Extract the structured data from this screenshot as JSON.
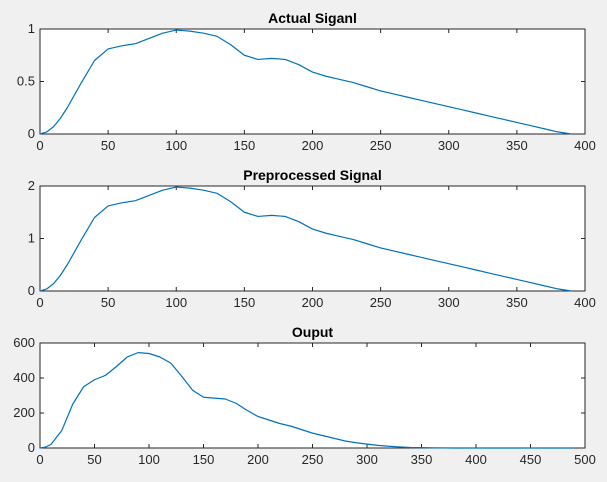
{
  "colors": {
    "line": "#0072bd",
    "figure_bg": "#f0f0f0",
    "axes_bg": "#ffffff",
    "axes": "#262626"
  },
  "chart_data": [
    {
      "type": "line",
      "title": "Actual Siganl",
      "xlim": [
        0,
        400
      ],
      "ylim": [
        0,
        1
      ],
      "xticks": [
        "0",
        "50",
        "100",
        "150",
        "200",
        "250",
        "300",
        "350",
        "400"
      ],
      "yticks": [
        "0",
        "0.5",
        "1"
      ],
      "grid": false,
      "series": [
        {
          "x": [
            0,
            5,
            10,
            15,
            20,
            30,
            40,
            50,
            60,
            70,
            80,
            90,
            100,
            110,
            120,
            130,
            140,
            150,
            160,
            170,
            180,
            190,
            200,
            210,
            220,
            230,
            240,
            250,
            260,
            270,
            280,
            290,
            300,
            310,
            320,
            330,
            340,
            350,
            360,
            370,
            380,
            390
          ],
          "values": [
            0,
            0.02,
            0.07,
            0.15,
            0.25,
            0.48,
            0.7,
            0.81,
            0.84,
            0.86,
            0.91,
            0.96,
            0.99,
            0.98,
            0.96,
            0.93,
            0.85,
            0.75,
            0.71,
            0.72,
            0.71,
            0.66,
            0.59,
            0.55,
            0.52,
            0.49,
            0.45,
            0.41,
            0.38,
            0.35,
            0.32,
            0.29,
            0.26,
            0.23,
            0.2,
            0.17,
            0.14,
            0.11,
            0.08,
            0.05,
            0.02,
            0
          ]
        }
      ]
    },
    {
      "type": "line",
      "title": "Preprocessed Signal",
      "xlim": [
        0,
        400
      ],
      "ylim": [
        0,
        2
      ],
      "xticks": [
        "0",
        "50",
        "100",
        "150",
        "200",
        "250",
        "300",
        "350",
        "400"
      ],
      "yticks": [
        "0",
        "1",
        "2"
      ],
      "grid": false,
      "series": [
        {
          "x": [
            0,
            5,
            10,
            15,
            20,
            30,
            40,
            50,
            60,
            70,
            80,
            90,
            100,
            110,
            120,
            130,
            140,
            150,
            160,
            170,
            180,
            190,
            200,
            210,
            220,
            230,
            240,
            250,
            260,
            270,
            280,
            290,
            300,
            310,
            320,
            330,
            340,
            350,
            360,
            370,
            380,
            390
          ],
          "values": [
            0,
            0.04,
            0.14,
            0.3,
            0.5,
            0.96,
            1.4,
            1.62,
            1.68,
            1.72,
            1.82,
            1.92,
            1.98,
            1.96,
            1.92,
            1.86,
            1.7,
            1.5,
            1.42,
            1.44,
            1.42,
            1.32,
            1.18,
            1.1,
            1.04,
            0.98,
            0.9,
            0.82,
            0.76,
            0.7,
            0.64,
            0.58,
            0.52,
            0.46,
            0.4,
            0.34,
            0.28,
            0.22,
            0.16,
            0.1,
            0.04,
            0
          ]
        }
      ]
    },
    {
      "type": "line",
      "title": "Ouput",
      "xlim": [
        0,
        500
      ],
      "ylim": [
        0,
        600
      ],
      "xticks": [
        "0",
        "50",
        "100",
        "150",
        "200",
        "250",
        "300",
        "350",
        "400",
        "450",
        "500"
      ],
      "yticks": [
        "0",
        "200",
        "400",
        "600"
      ],
      "grid": false,
      "series": [
        {
          "x": [
            0,
            5,
            10,
            20,
            30,
            40,
            50,
            60,
            70,
            80,
            90,
            100,
            110,
            120,
            130,
            140,
            150,
            160,
            170,
            180,
            190,
            200,
            210,
            220,
            230,
            240,
            250,
            260,
            270,
            280,
            290,
            300,
            310,
            320,
            330,
            340,
            350,
            360,
            380,
            400,
            420,
            450,
            480,
            490
          ],
          "values": [
            0,
            5,
            20,
            100,
            250,
            350,
            390,
            415,
            465,
            520,
            545,
            540,
            520,
            485,
            410,
            330,
            290,
            285,
            280,
            255,
            215,
            180,
            160,
            140,
            125,
            105,
            85,
            70,
            55,
            40,
            30,
            22,
            15,
            10,
            6,
            3,
            2,
            1,
            0,
            0,
            0,
            0,
            0,
            0
          ]
        }
      ]
    }
  ]
}
